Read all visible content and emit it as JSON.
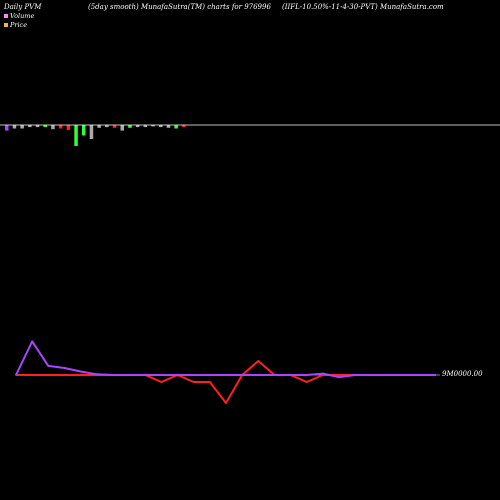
{
  "header": {
    "left": "Daily PVM",
    "center": "(5day smooth) MunafaSutra(TM) charts for 976996",
    "right": "(IIFL-10.50%-11-4-30-PVT) MunafaSutra.com"
  },
  "legend": {
    "volume_label": "Volume",
    "volume_color": "#ff88ff",
    "price_label": "Price",
    "price_color": "#ffaa55"
  },
  "colors": {
    "background": "#000000",
    "up": "#33ff33",
    "down": "#ff2020",
    "neutral": "#aaaaaa",
    "purple": "#aa44ff",
    "baseline": "#ffffff"
  },
  "chart_data": [
    {
      "type": "bar",
      "title": "",
      "colors_by_bar": [
        "purple",
        "neutral",
        "neutral",
        "neutral",
        "neutral",
        "up",
        "neutral",
        "down",
        "down",
        "up",
        "up",
        "neutral",
        "neutral",
        "neutral",
        "down",
        "neutral",
        "up",
        "neutral",
        "neutral",
        "neutral",
        "neutral",
        "neutral",
        "up",
        "down"
      ],
      "values": [
        -8,
        -5,
        -5,
        -3,
        -3,
        -3,
        -6,
        -5,
        -7,
        -30,
        -15,
        -20,
        -4,
        -3,
        -4,
        -8,
        -4,
        -3,
        -3,
        -2,
        -3,
        -4,
        -5,
        -3
      ]
    },
    {
      "type": "line",
      "value_label": "9M0000.00",
      "x": [
        0,
        1,
        2,
        3,
        4,
        5,
        6,
        7,
        8,
        9,
        10,
        11,
        12,
        13,
        14,
        15,
        16,
        17,
        18,
        19,
        20,
        21,
        22,
        23,
        24,
        25,
        26
      ],
      "series": [
        {
          "color": "red",
          "values": [
            0,
            0,
            0,
            0,
            0,
            0,
            0,
            0,
            0,
            -1,
            0,
            -1,
            -1,
            -4,
            0,
            2,
            0,
            0,
            -1,
            0,
            0,
            0,
            0,
            0,
            0,
            0,
            0
          ]
        },
        {
          "color": "purple",
          "values": [
            0,
            4.8,
            1.3,
            1,
            0.5,
            0.1,
            0,
            0,
            0,
            0,
            0,
            0,
            0,
            0,
            0,
            0,
            0,
            0,
            0,
            0.2,
            -0.3,
            0,
            0,
            0,
            0,
            0,
            0
          ]
        }
      ]
    }
  ]
}
